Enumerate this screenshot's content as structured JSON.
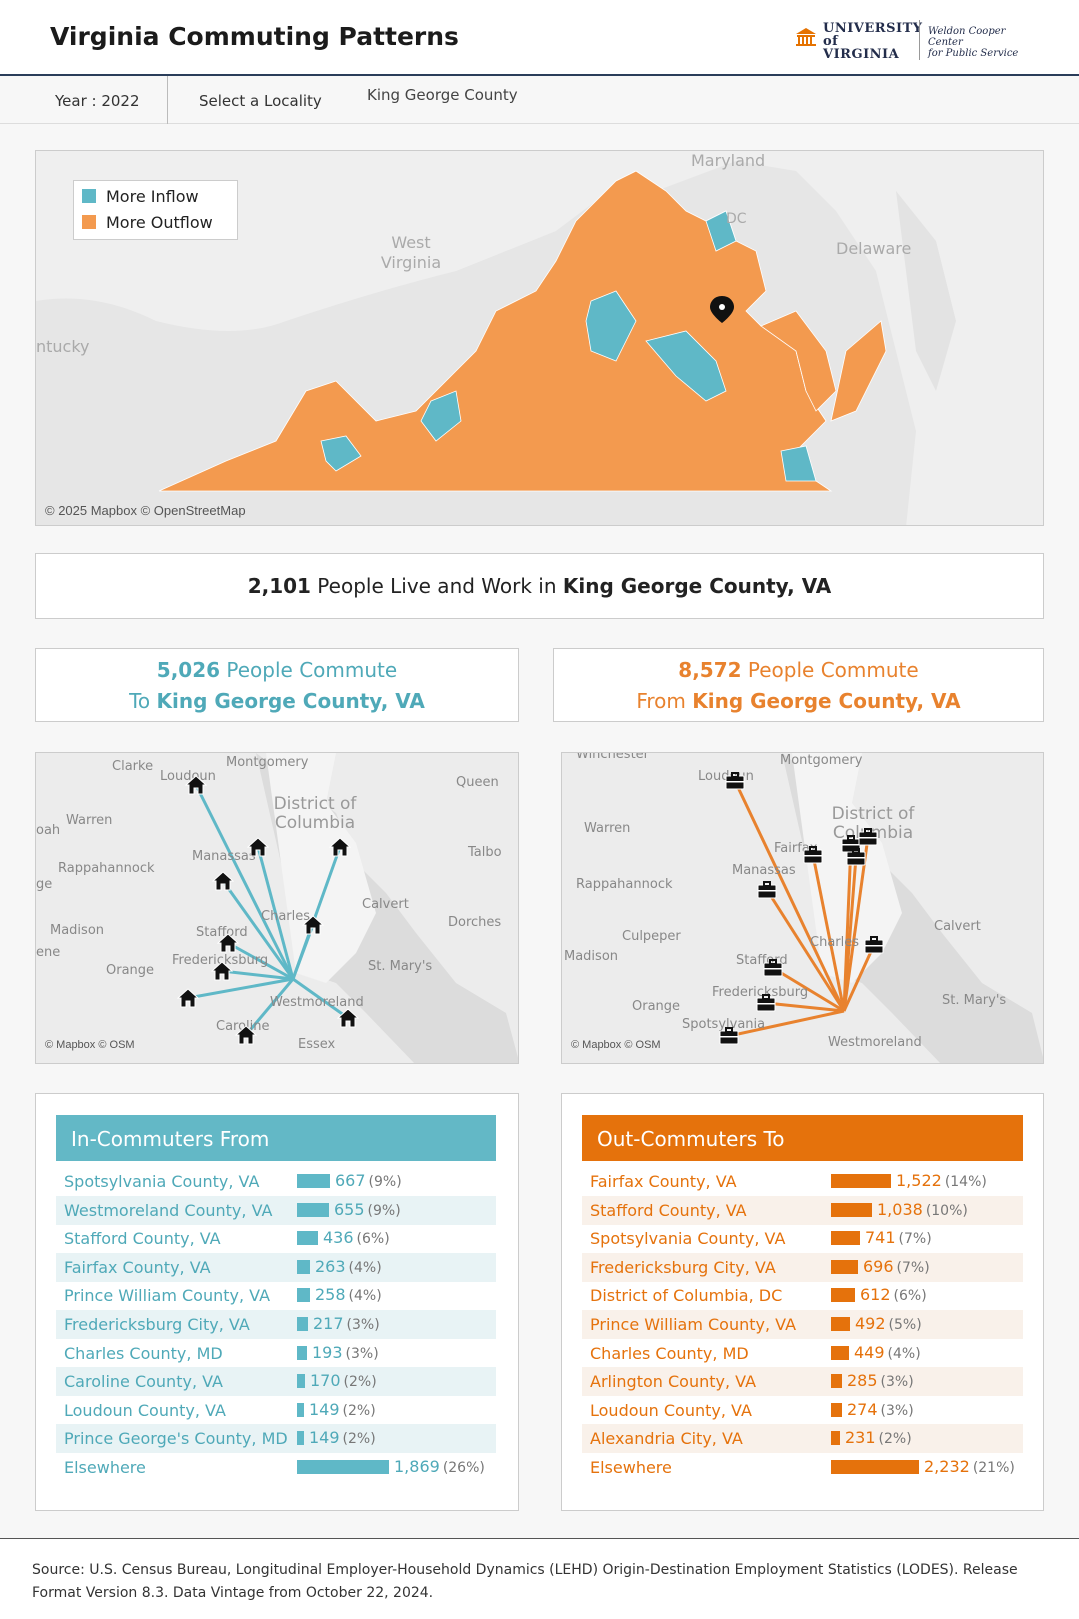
{
  "header": {
    "title": "Virginia Commuting Patterns",
    "logo_university": "UNIVERSITY of VIRGINIA",
    "logo_center_line1": "Weldon Cooper Center",
    "logo_center_line2": "for Public Service"
  },
  "filters": {
    "year_label": "Year : 2022",
    "locality_label": "Select a Locality",
    "locality_value": "King George County"
  },
  "colors": {
    "inflow": "#5fb8c7",
    "outflow": "#f39a4f",
    "in_accent": "#4fa9b8",
    "out_accent": "#e8822e",
    "in_header": "#63b8c6",
    "out_header": "#e5720c"
  },
  "main_map": {
    "legend": [
      {
        "label": "More Inflow",
        "color": "#5fb8c7"
      },
      {
        "label": "More Outflow",
        "color": "#f39a4f"
      }
    ],
    "place_labels": {
      "maryland": "Maryland",
      "west_virginia_1": "West",
      "west_virginia_2": "Virginia",
      "delaware": "Delaware",
      "kentucky": "ntucky",
      "dc": "DC"
    },
    "attribution": "© 2025 Mapbox © OpenStreetMap"
  },
  "kpi": {
    "live_work_count": "2,101",
    "live_work_text": " People Live and Work in ",
    "locality_full": "King George County, VA",
    "in_count": "5,026",
    "in_text": " People Commute",
    "in_to": "To ",
    "out_count": "8,572",
    "out_text": " People Commute",
    "out_from": "From "
  },
  "in_map": {
    "labels": {
      "clarke": "Clarke",
      "loudoun": "Loudoun",
      "montgomery": "Montgomery",
      "queen": "Queen",
      "warren": "Warren",
      "district_1": "District of",
      "district_2": "Columbia",
      "talbo": "Talbo",
      "manassas": "Manassas",
      "rappahannock": "Rappahannock",
      "calvert": "Calvert",
      "charles": "Charles",
      "dorches": "Dorches",
      "madison": "Madison",
      "stafford": "Stafford",
      "fredericksburg": "Fredericksburg",
      "stmarys": "St. Mary's",
      "orange": "Orange",
      "westmoreland": "Westmoreland",
      "caroline": "Caroline",
      "essex": "Essex",
      "oah": "oah",
      "ge": "ge",
      "ene": "ene"
    },
    "attribution": "© Mapbox © OSM"
  },
  "out_map": {
    "labels": {
      "winchester": "Winchester",
      "loudoun": "Loudoun",
      "montgomery": "Montgomery",
      "warren": "Warren",
      "district_1": "District of",
      "district_2": "Columbia",
      "fairfax": "Fairfax",
      "manassas": "Manassas",
      "rappahannock": "Rappahannock",
      "culpeper": "Culpeper",
      "charles": "Charles",
      "calvert": "Calvert",
      "madison": "Madison",
      "stafford": "Stafford",
      "orange": "Orange",
      "fredericksburg": "Fredericksburg",
      "stmarys": "St. Mary's",
      "spotsylvania": "Spotsylvania",
      "westmoreland": "Westmoreland"
    },
    "attribution": "© Mapbox © OSM"
  },
  "in_commuters": {
    "title": "In-Commuters From",
    "rows": [
      {
        "name": "Spotsylvania County, VA",
        "value": "667",
        "pct": "(9%)",
        "n": 667
      },
      {
        "name": "Westmoreland County, VA",
        "value": "655",
        "pct": "(9%)",
        "n": 655
      },
      {
        "name": "Stafford County, VA",
        "value": "436",
        "pct": "(6%)",
        "n": 436
      },
      {
        "name": "Fairfax County, VA",
        "value": "263",
        "pct": "(4%)",
        "n": 263
      },
      {
        "name": "Prince William County, VA",
        "value": "258",
        "pct": "(4%)",
        "n": 258
      },
      {
        "name": "Fredericksburg City, VA",
        "value": "217",
        "pct": "(3%)",
        "n": 217
      },
      {
        "name": "Charles County, MD",
        "value": "193",
        "pct": "(3%)",
        "n": 193
      },
      {
        "name": "Caroline County, VA",
        "value": "170",
        "pct": "(2%)",
        "n": 170
      },
      {
        "name": "Loudoun County, VA",
        "value": "149",
        "pct": "(2%)",
        "n": 149
      },
      {
        "name": "Prince George's County, MD",
        "value": "149",
        "pct": "(2%)",
        "n": 149
      },
      {
        "name": "Elsewhere",
        "value": "1,869",
        "pct": "(26%)",
        "n": 1869
      }
    ]
  },
  "out_commuters": {
    "title": "Out-Commuters To",
    "rows": [
      {
        "name": "Fairfax County, VA",
        "value": "1,522",
        "pct": "(14%)",
        "n": 1522
      },
      {
        "name": "Stafford County, VA",
        "value": "1,038",
        "pct": "(10%)",
        "n": 1038
      },
      {
        "name": "Spotsylvania County, VA",
        "value": "741",
        "pct": "(7%)",
        "n": 741
      },
      {
        "name": "Fredericksburg City, VA",
        "value": "696",
        "pct": "(7%)",
        "n": 696
      },
      {
        "name": "District of Columbia, DC",
        "value": "612",
        "pct": "(6%)",
        "n": 612
      },
      {
        "name": "Prince William County, VA",
        "value": "492",
        "pct": "(5%)",
        "n": 492
      },
      {
        "name": "Charles County, MD",
        "value": "449",
        "pct": "(4%)",
        "n": 449
      },
      {
        "name": "Arlington County, VA",
        "value": "285",
        "pct": "(3%)",
        "n": 285
      },
      {
        "name": "Loudoun County, VA",
        "value": "274",
        "pct": "(3%)",
        "n": 274
      },
      {
        "name": "Alexandria City, VA",
        "value": "231",
        "pct": "(2%)",
        "n": 231
      },
      {
        "name": "Elsewhere",
        "value": "2,232",
        "pct": "(21%)",
        "n": 2232
      }
    ]
  },
  "footer": {
    "source": "Source: U.S. Census Bureau, Longitudinal Employer-Household Dynamics (LEHD) Origin-Destination Employment Statistics (LODES). Release Format Version 8.3. Data Vintage from October 22, 2024."
  }
}
